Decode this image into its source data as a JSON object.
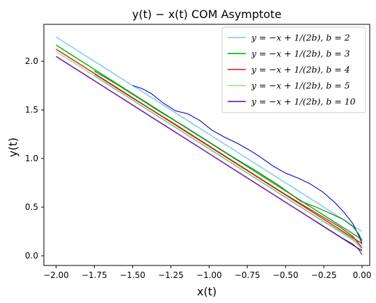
{
  "chart_data": {
    "type": "line",
    "title": "y(t) − x(t) COM Asymptote",
    "xlabel": "x(t)",
    "ylabel": "y(t)",
    "xlim": [
      -2.08,
      0.05
    ],
    "ylim": [
      -0.1,
      2.38
    ],
    "x_ticks": [
      -2.0,
      -1.75,
      -1.5,
      -1.25,
      -1.0,
      -0.75,
      -0.5,
      -0.25,
      0.0
    ],
    "x_tick_labels": [
      "−2.00",
      "−1.75",
      "−1.50",
      "−1.25",
      "−1.00",
      "−0.75",
      "−0.50",
      "−0.25",
      "0.00"
    ],
    "y_ticks": [
      0.0,
      0.5,
      1.0,
      1.5,
      2.0
    ],
    "y_tick_labels": [
      "0.0",
      "0.5",
      "1.0",
      "1.5",
      "2.0"
    ],
    "grid": false,
    "legend_position": "top-right",
    "asymptotes": [
      {
        "name": "y = −x + 1/(2b), b = 2",
        "b": 2,
        "color": "#87ceeb",
        "x_range": [
          -2.0,
          0.0
        ]
      },
      {
        "name": "y = −x + 1/(2b), b = 3",
        "b": 3,
        "color": "#11bb11",
        "x_range": [
          -2.0,
          0.0
        ]
      },
      {
        "name": "y = −x + 1/(2b), b = 4",
        "b": 4,
        "color": "#dd3333",
        "x_range": [
          -2.0,
          0.0
        ]
      },
      {
        "name": "y = −x + 1/(2b), b = 5",
        "b": 5,
        "color": "#90ee90",
        "x_range": [
          -2.0,
          0.0
        ]
      },
      {
        "name": "y = −x + 1/(2b), b = 10",
        "b": 10,
        "color": "#7b1fb0",
        "x_range": [
          -2.0,
          0.0
        ]
      }
    ],
    "trajectories": [
      {
        "color": "#1515cc",
        "x": [
          -1.5,
          -1.44,
          -1.38,
          -1.3,
          -1.22,
          -1.14,
          -1.06,
          -0.98,
          -0.9,
          -0.82,
          -0.74,
          -0.66,
          -0.58,
          -0.5,
          -0.42,
          -0.34,
          -0.26,
          -0.18,
          -0.12,
          -0.06,
          -0.02,
          0.0
        ],
        "y": [
          1.75,
          1.72,
          1.67,
          1.57,
          1.49,
          1.46,
          1.39,
          1.29,
          1.22,
          1.16,
          1.09,
          1.01,
          0.92,
          0.85,
          0.8,
          0.74,
          0.66,
          0.55,
          0.45,
          0.33,
          0.2,
          0.12
        ]
      },
      {
        "color": "#118811",
        "x": [
          -1.75,
          -1.6,
          -1.45,
          -1.3,
          -1.15,
          -1.0,
          -0.85,
          -0.7,
          -0.55,
          -0.4,
          -0.3,
          -0.2,
          -0.12,
          -0.06,
          -0.02,
          0.0
        ],
        "y": [
          1.9,
          1.76,
          1.61,
          1.46,
          1.32,
          1.17,
          1.02,
          0.88,
          0.73,
          0.56,
          0.5,
          0.43,
          0.37,
          0.3,
          0.22,
          0.15
        ]
      },
      {
        "color": "#aa2222",
        "x": [
          -1.75,
          -1.5,
          -1.25,
          -1.0,
          -0.75,
          -0.5,
          -0.3,
          -0.15,
          -0.06,
          -0.02,
          0.0
        ],
        "y": [
          1.87,
          1.62,
          1.38,
          1.13,
          0.88,
          0.63,
          0.44,
          0.3,
          0.2,
          0.12,
          0.08
        ]
      },
      {
        "color": "#66cc66",
        "x": [
          -1.75,
          -1.5,
          -1.25,
          -1.0,
          -0.75,
          -0.5,
          -0.3,
          -0.15,
          -0.06,
          -0.02,
          0.0
        ],
        "y": [
          1.85,
          1.6,
          1.35,
          1.1,
          0.85,
          0.6,
          0.4,
          0.26,
          0.17,
          0.1,
          0.06
        ]
      },
      {
        "color": "#5a1590",
        "x": [
          -0.3,
          -0.15,
          -0.06,
          -0.02,
          0.0
        ],
        "y": [
          0.35,
          0.2,
          0.12,
          0.06,
          0.01
        ]
      }
    ]
  }
}
